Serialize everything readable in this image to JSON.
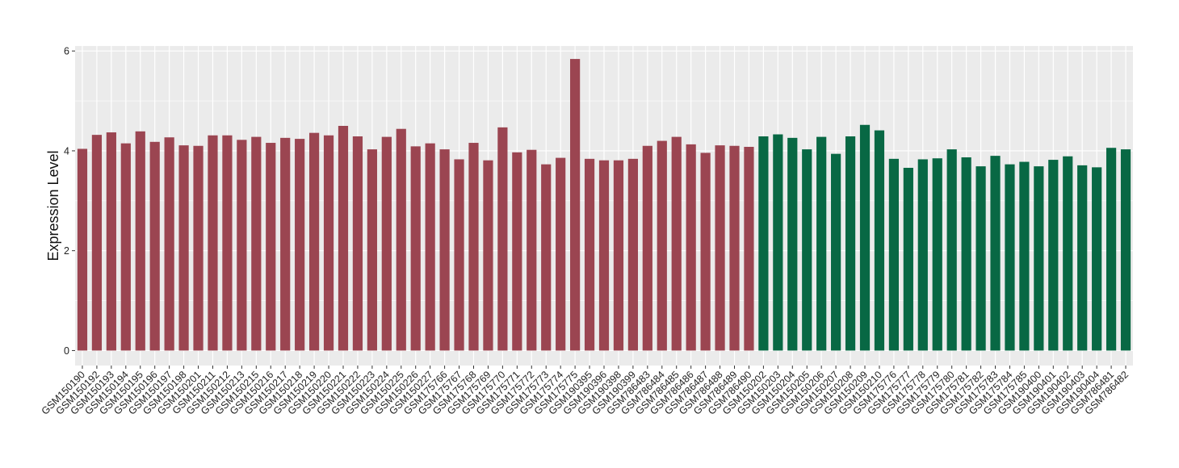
{
  "colors": {
    "panel_background": "#EBEBEB",
    "gridline": "#FFFFFF",
    "tick": "#333333",
    "group_1": "#9B4551",
    "group_2": "#086844"
  },
  "chart_data": {
    "type": "bar",
    "title": "",
    "xlabel": "",
    "ylabel": "Expression Level",
    "ylim": [
      -0.3,
      6.1
    ],
    "yticks": [
      0,
      2,
      4,
      6
    ],
    "grid": true,
    "legend": "none",
    "categories": [
      "GSM150190",
      "GSM150192",
      "GSM150193",
      "GSM150194",
      "GSM150195",
      "GSM150196",
      "GSM150197",
      "GSM150198",
      "GSM150201",
      "GSM150211",
      "GSM150212",
      "GSM150213",
      "GSM150215",
      "GSM150216",
      "GSM150217",
      "GSM150218",
      "GSM150219",
      "GSM150220",
      "GSM150221",
      "GSM150222",
      "GSM150223",
      "GSM150224",
      "GSM150225",
      "GSM150226",
      "GSM150227",
      "GSM175766",
      "GSM175767",
      "GSM175768",
      "GSM175769",
      "GSM175770",
      "GSM175771",
      "GSM175772",
      "GSM175773",
      "GSM175774",
      "GSM175775",
      "GSM190395",
      "GSM190396",
      "GSM190398",
      "GSM190399",
      "GSM786483",
      "GSM786484",
      "GSM786485",
      "GSM786486",
      "GSM786487",
      "GSM786488",
      "GSM786489",
      "GSM786490",
      "GSM150202",
      "GSM150203",
      "GSM150204",
      "GSM150205",
      "GSM150206",
      "GSM150207",
      "GSM150208",
      "GSM150209",
      "GSM150210",
      "GSM175776",
      "GSM175777",
      "GSM175778",
      "GSM175779",
      "GSM175780",
      "GSM175781",
      "GSM175782",
      "GSM175783",
      "GSM175784",
      "GSM175785",
      "GSM190400",
      "GSM190401",
      "GSM190402",
      "GSM190403",
      "GSM190404",
      "GSM786481",
      "GSM786482"
    ],
    "values": [
      4.04,
      4.32,
      4.37,
      4.15,
      4.39,
      4.18,
      4.27,
      4.11,
      4.1,
      4.31,
      4.31,
      4.22,
      4.28,
      4.16,
      4.26,
      4.24,
      4.36,
      4.31,
      4.5,
      4.29,
      4.03,
      4.28,
      4.44,
      4.09,
      4.15,
      4.03,
      3.83,
      4.16,
      3.81,
      4.47,
      3.97,
      4.02,
      3.73,
      3.86,
      5.84,
      3.84,
      3.81,
      3.81,
      3.84,
      4.1,
      4.2,
      4.28,
      4.13,
      3.96,
      4.11,
      4.1,
      4.08,
      4.29,
      4.33,
      4.26,
      4.03,
      4.28,
      3.94,
      4.29,
      4.52,
      4.41,
      3.84,
      3.66,
      3.83,
      3.85,
      4.03,
      3.87,
      3.69,
      3.9,
      3.73,
      3.78,
      3.69,
      3.82,
      3.89,
      3.71,
      3.67,
      4.06,
      4.03
    ],
    "groups": [
      1,
      1,
      1,
      1,
      1,
      1,
      1,
      1,
      1,
      1,
      1,
      1,
      1,
      1,
      1,
      1,
      1,
      1,
      1,
      1,
      1,
      1,
      1,
      1,
      1,
      1,
      1,
      1,
      1,
      1,
      1,
      1,
      1,
      1,
      1,
      1,
      1,
      1,
      1,
      1,
      1,
      1,
      1,
      1,
      1,
      1,
      1,
      2,
      2,
      2,
      2,
      2,
      2,
      2,
      2,
      2,
      2,
      2,
      2,
      2,
      2,
      2,
      2,
      2,
      2,
      2,
      2,
      2,
      2,
      2,
      2,
      2,
      2
    ]
  }
}
